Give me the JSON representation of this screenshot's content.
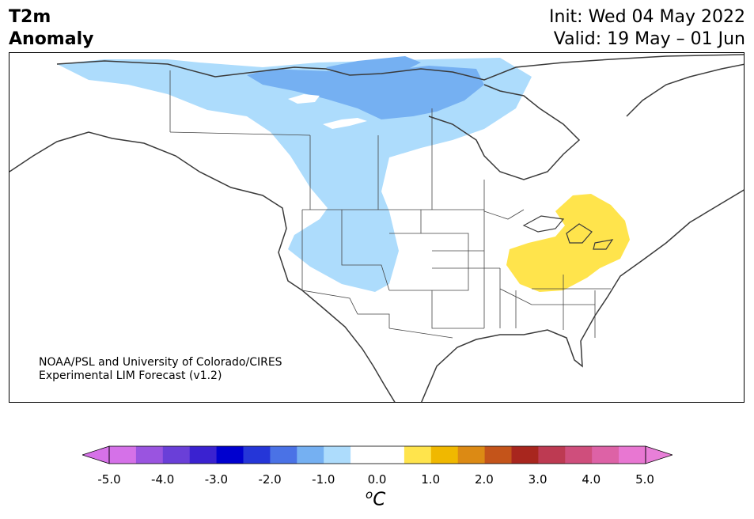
{
  "header": {
    "title_line1": "T2m",
    "title_line2": "Anomaly",
    "init_line": "Init: Wed 04 May 2022",
    "valid_line": "Valid: 19 May – 01 Jun"
  },
  "credit": {
    "line1": "NOAA/PSL and University of Colorado/CIRES",
    "line2": "Experimental LIM Forecast (v1.2)"
  },
  "map": {
    "region": "North America",
    "anomaly_areas": [
      {
        "name": "canada-and-west-cool-region",
        "anomaly_bin": "-1.0 to -0.5",
        "color": "#addcfc"
      },
      {
        "name": "northern-canada-stronger-cool-region",
        "anomaly_bin": "-1.5 to -1.0",
        "color": "#75b0f2"
      },
      {
        "name": "great-lakes-ohio-valley-warm-region",
        "anomaly_bin": "0.5 to 1.0",
        "color": "#ffe44c"
      }
    ],
    "colors": {
      "land_outline": "#3a3a3a",
      "state_lines": "#444444",
      "frame": "#000000"
    }
  },
  "colorbar": {
    "unit_base": "C",
    "unit_sup": "o",
    "tick_labels": [
      "-5.0",
      "-4.0",
      "-3.0",
      "-2.0",
      "-1.0",
      "0.0",
      "1.0",
      "2.0",
      "3.0",
      "4.0",
      "5.0"
    ],
    "min_extend_color": "#d671e8",
    "max_extend_color": "#e87fd8",
    "bins": [
      {
        "range": "-5.0 to -4.5",
        "color": "#d571e8"
      },
      {
        "range": "-4.5 to -4.0",
        "color": "#9a54e0"
      },
      {
        "range": "-4.0 to -3.5",
        "color": "#6a3fd8"
      },
      {
        "range": "-3.5 to -3.0",
        "color": "#3a22d0"
      },
      {
        "range": "-3.0 to -2.5",
        "color": "#0000cf"
      },
      {
        "range": "-2.5 to -2.0",
        "color": "#2536d8"
      },
      {
        "range": "-2.0 to -1.5",
        "color": "#4a72e6"
      },
      {
        "range": "-1.5 to -1.0",
        "color": "#75b0f2"
      },
      {
        "range": "-1.0 to -0.5",
        "color": "#addcfc"
      },
      {
        "range": "-0.5 to 0.0",
        "color": "#ffffff"
      },
      {
        "range": "0.0 to 0.5",
        "color": "#ffffff"
      },
      {
        "range": "0.5 to 1.0",
        "color": "#ffe44c"
      },
      {
        "range": "1.0 to 1.5",
        "color": "#f0b800"
      },
      {
        "range": "1.5 to 2.0",
        "color": "#dc8a14"
      },
      {
        "range": "2.0 to 2.5",
        "color": "#c4541a"
      },
      {
        "range": "2.5 to 3.0",
        "color": "#a8261e"
      },
      {
        "range": "3.0 to 3.5",
        "color": "#bd3a52"
      },
      {
        "range": "3.5 to 4.0",
        "color": "#cf4e7c"
      },
      {
        "range": "4.0 to 4.5",
        "color": "#dd62a6"
      },
      {
        "range": "4.5 to 5.0",
        "color": "#e877d2"
      }
    ]
  }
}
